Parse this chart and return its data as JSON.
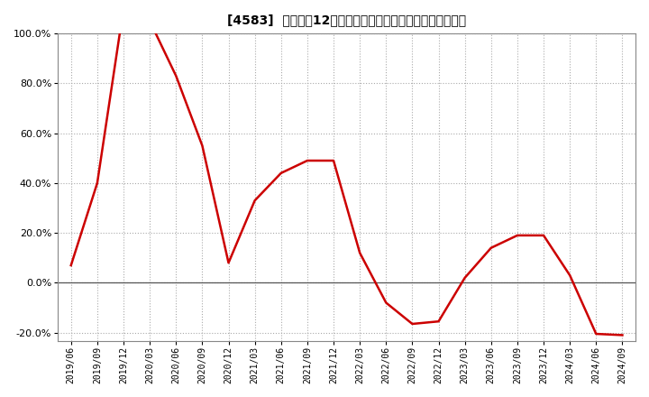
{
  "title": "[4583]  売上高の12か月移動合計の対前年同期増減率の推移",
  "line_color": "#cc0000",
  "background_color": "#ffffff",
  "plot_bg_color": "#ffffff",
  "grid_color": "#aaaaaa",
  "ylim": [
    -0.235,
    0.128
  ],
  "yticks": [
    -0.2,
    0.0,
    0.2,
    0.4,
    0.6,
    0.8,
    1.0
  ],
  "dates": [
    "2019/06",
    "2019/09",
    "2019/12",
    "2020/03",
    "2020/06",
    "2020/09",
    "2020/12",
    "2021/03",
    "2021/06",
    "2021/09",
    "2021/12",
    "2022/03",
    "2022/06",
    "2022/09",
    "2022/12",
    "2023/03",
    "2023/06",
    "2023/09",
    "2023/12",
    "2024/03",
    "2024/06",
    "2024/09"
  ],
  "values": [
    0.07,
    0.4,
    1.1,
    1.05,
    0.83,
    0.55,
    0.08,
    0.33,
    0.44,
    0.49,
    0.49,
    0.12,
    -0.08,
    -0.165,
    -0.155,
    0.02,
    0.14,
    0.19,
    0.19,
    0.03,
    -0.205,
    -0.21
  ]
}
